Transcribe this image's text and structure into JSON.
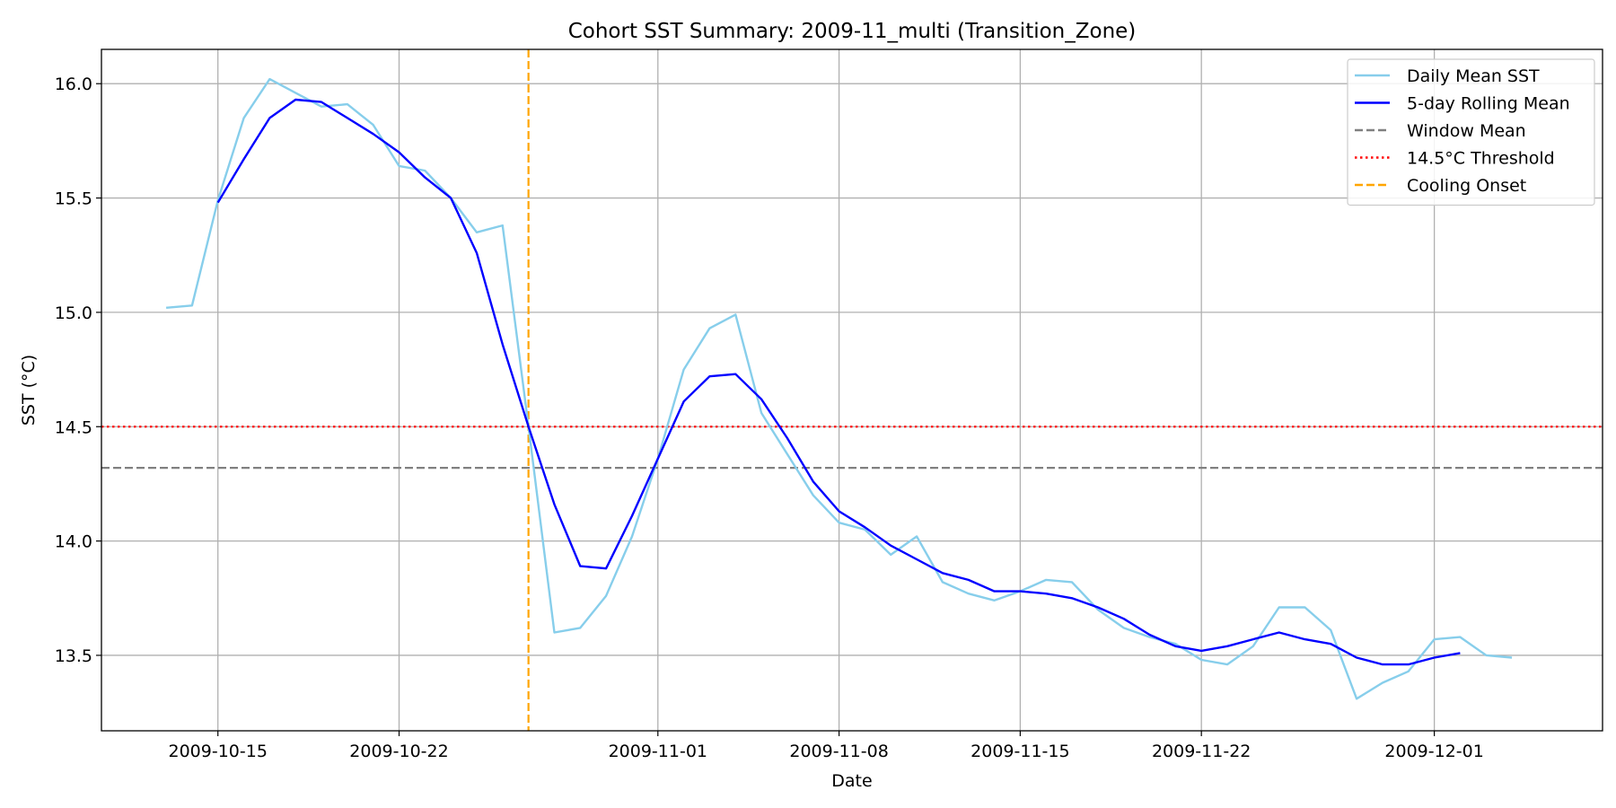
{
  "chart_data": {
    "type": "line",
    "title": "Cohort SST Summary: 2009-11_multi (Transition_Zone)",
    "xlabel": "Date",
    "ylabel": "SST (°C)",
    "xlim": [
      "2009-10-10T12:00",
      "2009-12-07T12:00"
    ],
    "ylim": [
      13.17,
      16.15
    ],
    "x_ticks": [
      "2009-10-15",
      "2009-10-22",
      "2009-11-01",
      "2009-11-08",
      "2009-11-15",
      "2009-11-22",
      "2009-12-01"
    ],
    "y_ticks": [
      13.5,
      14.0,
      14.5,
      15.0,
      15.5,
      16.0
    ],
    "y_tick_labels": [
      "13.5",
      "14.0",
      "14.5",
      "15.0",
      "15.5",
      "16.0"
    ],
    "grid": true,
    "legend_position": "top-right",
    "series": [
      {
        "name": "Daily Mean SST",
        "color": "#87ceeb",
        "style": "solid",
        "x": [
          "2009-10-13",
          "2009-10-14",
          "2009-10-15",
          "2009-10-16",
          "2009-10-17",
          "2009-10-18",
          "2009-10-19",
          "2009-10-20",
          "2009-10-21",
          "2009-10-22",
          "2009-10-23",
          "2009-10-24",
          "2009-10-25",
          "2009-10-26",
          "2009-10-27",
          "2009-10-28",
          "2009-10-29",
          "2009-10-30",
          "2009-10-31",
          "2009-11-01",
          "2009-11-02",
          "2009-11-03",
          "2009-11-04",
          "2009-11-05",
          "2009-11-06",
          "2009-11-07",
          "2009-11-08",
          "2009-11-09",
          "2009-11-10",
          "2009-11-11",
          "2009-11-12",
          "2009-11-13",
          "2009-11-14",
          "2009-11-15",
          "2009-11-16",
          "2009-11-17",
          "2009-11-18",
          "2009-11-19",
          "2009-11-20",
          "2009-11-21",
          "2009-11-22",
          "2009-11-23",
          "2009-11-24",
          "2009-11-25",
          "2009-11-26",
          "2009-11-27",
          "2009-11-28",
          "2009-11-29",
          "2009-11-30",
          "2009-12-01",
          "2009-12-02",
          "2009-12-03",
          "2009-12-04"
        ],
        "y": [
          15.02,
          15.03,
          15.49,
          15.85,
          16.02,
          15.96,
          15.9,
          15.91,
          15.82,
          15.64,
          15.62,
          15.5,
          15.35,
          15.38,
          14.5,
          13.6,
          13.62,
          13.76,
          14.02,
          14.36,
          14.75,
          14.93,
          14.99,
          14.56,
          14.38,
          14.2,
          14.08,
          14.05,
          13.94,
          14.02,
          13.82,
          13.77,
          13.74,
          13.78,
          13.83,
          13.82,
          13.7,
          13.62,
          13.58,
          13.55,
          13.48,
          13.46,
          13.54,
          13.71,
          13.71,
          13.61,
          13.31,
          13.38,
          13.43,
          13.57,
          13.58,
          13.5,
          13.49
        ]
      },
      {
        "name": "5-day Rolling Mean",
        "color": "#0000ff",
        "style": "solid",
        "x": [
          "2009-10-15",
          "2009-10-16",
          "2009-10-17",
          "2009-10-18",
          "2009-10-19",
          "2009-10-20",
          "2009-10-21",
          "2009-10-22",
          "2009-10-23",
          "2009-10-24",
          "2009-10-25",
          "2009-10-26",
          "2009-10-27",
          "2009-10-28",
          "2009-10-29",
          "2009-10-30",
          "2009-10-31",
          "2009-11-01",
          "2009-11-02",
          "2009-11-03",
          "2009-11-04",
          "2009-11-05",
          "2009-11-06",
          "2009-11-07",
          "2009-11-08",
          "2009-11-09",
          "2009-11-10",
          "2009-11-11",
          "2009-11-12",
          "2009-11-13",
          "2009-11-14",
          "2009-11-15",
          "2009-11-16",
          "2009-11-17",
          "2009-11-18",
          "2009-11-19",
          "2009-11-20",
          "2009-11-21",
          "2009-11-22",
          "2009-11-23",
          "2009-11-24",
          "2009-11-25",
          "2009-11-26",
          "2009-11-27",
          "2009-11-28",
          "2009-11-29",
          "2009-11-30",
          "2009-12-01",
          "2009-12-02"
        ],
        "y": [
          15.48,
          15.67,
          15.85,
          15.93,
          15.92,
          15.85,
          15.78,
          15.7,
          15.59,
          15.5,
          15.26,
          14.86,
          14.5,
          14.16,
          13.89,
          13.88,
          14.11,
          14.36,
          14.61,
          14.72,
          14.73,
          14.62,
          14.45,
          14.26,
          14.13,
          14.06,
          13.98,
          13.92,
          13.86,
          13.83,
          13.78,
          13.78,
          13.77,
          13.75,
          13.71,
          13.66,
          13.59,
          13.54,
          13.52,
          13.54,
          13.57,
          13.6,
          13.57,
          13.55,
          13.49,
          13.46,
          13.46,
          13.49,
          13.51
        ]
      }
    ],
    "reference_lines": [
      {
        "name": "Window Mean",
        "orientation": "horizontal",
        "y": 14.32,
        "color": "#808080",
        "style": "dashed"
      },
      {
        "name": "14.5°C Threshold",
        "orientation": "horizontal",
        "y": 14.5,
        "color": "#ff0000",
        "style": "dotted"
      },
      {
        "name": "Cooling Onset",
        "orientation": "vertical",
        "x": "2009-10-27",
        "color": "#ffa500",
        "style": "dashed"
      }
    ]
  }
}
